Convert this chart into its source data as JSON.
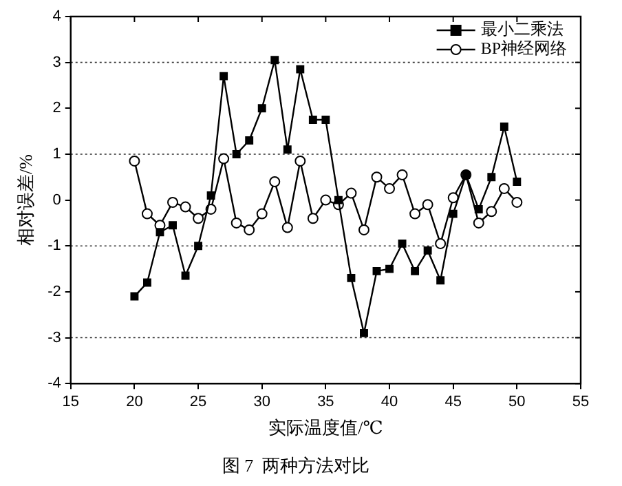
{
  "chart_data": {
    "type": "line",
    "title": "图 7  两种方法对比",
    "xlabel": "实际温度值/℃",
    "ylabel": "相对误差/%",
    "x": [
      20,
      21,
      22,
      23,
      24,
      25,
      26,
      27,
      28,
      29,
      30,
      31,
      32,
      33,
      34,
      35,
      36,
      37,
      38,
      39,
      40,
      41,
      42,
      43,
      44,
      45,
      46,
      47,
      48,
      49,
      50
    ],
    "series": [
      {
        "name": "最小二乘法",
        "color": "#000000",
        "marker": "square",
        "values": [
          -2.1,
          -1.8,
          -0.7,
          -0.55,
          -1.65,
          -1.0,
          0.1,
          2.7,
          1.0,
          1.3,
          2.0,
          3.05,
          1.1,
          2.85,
          1.75,
          1.75,
          0.0,
          -1.7,
          -2.9,
          -1.55,
          -1.5,
          -0.95,
          -1.55,
          -1.1,
          -1.75,
          -0.3,
          0.55,
          -0.2,
          0.5,
          1.6,
          0.4
        ]
      },
      {
        "name": "BP神经网络",
        "color": "#000000",
        "marker": "circle",
        "values": [
          0.85,
          -0.3,
          -0.55,
          -0.05,
          -0.15,
          -0.4,
          -0.2,
          0.9,
          -0.5,
          -0.65,
          -0.3,
          0.4,
          -0.6,
          0.85,
          -0.4,
          0.0,
          -0.1,
          0.15,
          -0.65,
          0.5,
          0.25,
          0.55,
          -0.3,
          -0.1,
          -0.95,
          0.05,
          0.55,
          -0.5,
          -0.25,
          0.25,
          -0.05
        ]
      }
    ],
    "xlim": [
      15,
      55
    ],
    "xticks": [
      15,
      20,
      25,
      30,
      35,
      40,
      45,
      50,
      55
    ],
    "ylim": [
      -4,
      4
    ],
    "yticks": [
      -4,
      -3,
      -2,
      -1,
      0,
      1,
      2,
      3,
      4
    ],
    "ref_lines": [
      {
        "axis": "y",
        "value": 3,
        "line_style": "dotted"
      },
      {
        "axis": "y",
        "value": 1,
        "line_style": "dotted"
      },
      {
        "axis": "y",
        "value": -1,
        "line_style": "dotted"
      },
      {
        "axis": "y",
        "value": -3,
        "line_style": "dotted"
      }
    ],
    "legend": "top right",
    "grid": false,
    "line_style": "solid"
  }
}
